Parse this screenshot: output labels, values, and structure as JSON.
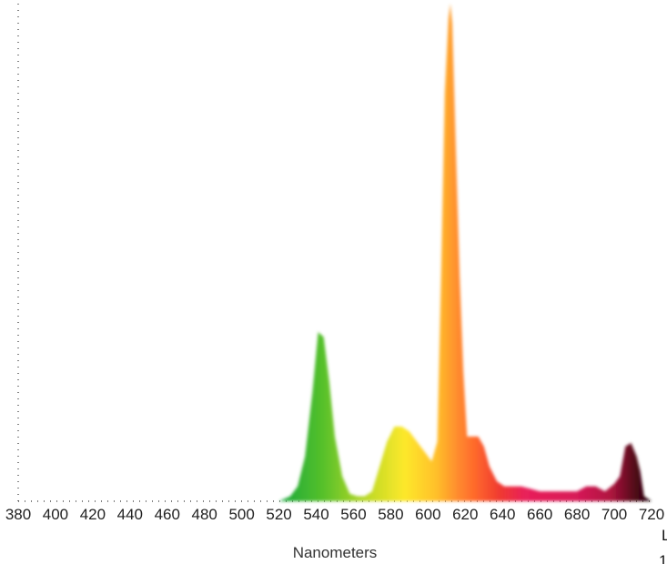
{
  "chart_data": {
    "type": "area",
    "title": "",
    "xlabel": "Nanometers",
    "ylabel": "",
    "xlim": [
      380,
      720
    ],
    "ylim": [
      0,
      1
    ],
    "x_ticks": [
      "380",
      "400",
      "420",
      "440",
      "460",
      "480",
      "500",
      "520",
      "540",
      "560",
      "580",
      "600",
      "620",
      "640",
      "660",
      "680",
      "700",
      "720"
    ],
    "grid": false,
    "legend": "none",
    "fill": "visible-spectrum color gradient",
    "series": [
      {
        "x": [
          380,
          520,
          526,
          530,
          534,
          538,
          541,
          544,
          547,
          550,
          554,
          558,
          562,
          566,
          570,
          574,
          578,
          582,
          586,
          590,
          594,
          598,
          602,
          605,
          607,
          609,
          611,
          612,
          613,
          615,
          617,
          619,
          621,
          624,
          627,
          630,
          633,
          637,
          641,
          645,
          650,
          655,
          660,
          665,
          670,
          675,
          680,
          685,
          690,
          695,
          700,
          703,
          706,
          709,
          712,
          714,
          716,
          720
        ],
        "y": [
          0,
          0,
          0.01,
          0.03,
          0.09,
          0.22,
          0.34,
          0.33,
          0.24,
          0.13,
          0.05,
          0.015,
          0.01,
          0.01,
          0.02,
          0.07,
          0.12,
          0.15,
          0.15,
          0.14,
          0.12,
          0.1,
          0.08,
          0.12,
          0.45,
          0.82,
          0.97,
          1.0,
          0.96,
          0.7,
          0.45,
          0.26,
          0.13,
          0.13,
          0.13,
          0.11,
          0.07,
          0.04,
          0.03,
          0.03,
          0.03,
          0.025,
          0.02,
          0.02,
          0.02,
          0.02,
          0.02,
          0.03,
          0.03,
          0.02,
          0.035,
          0.05,
          0.11,
          0.117,
          0.09,
          0.06,
          0.01,
          0
        ]
      }
    ]
  },
  "edge_text": {
    "top": "L",
    "bottom": "1"
  }
}
